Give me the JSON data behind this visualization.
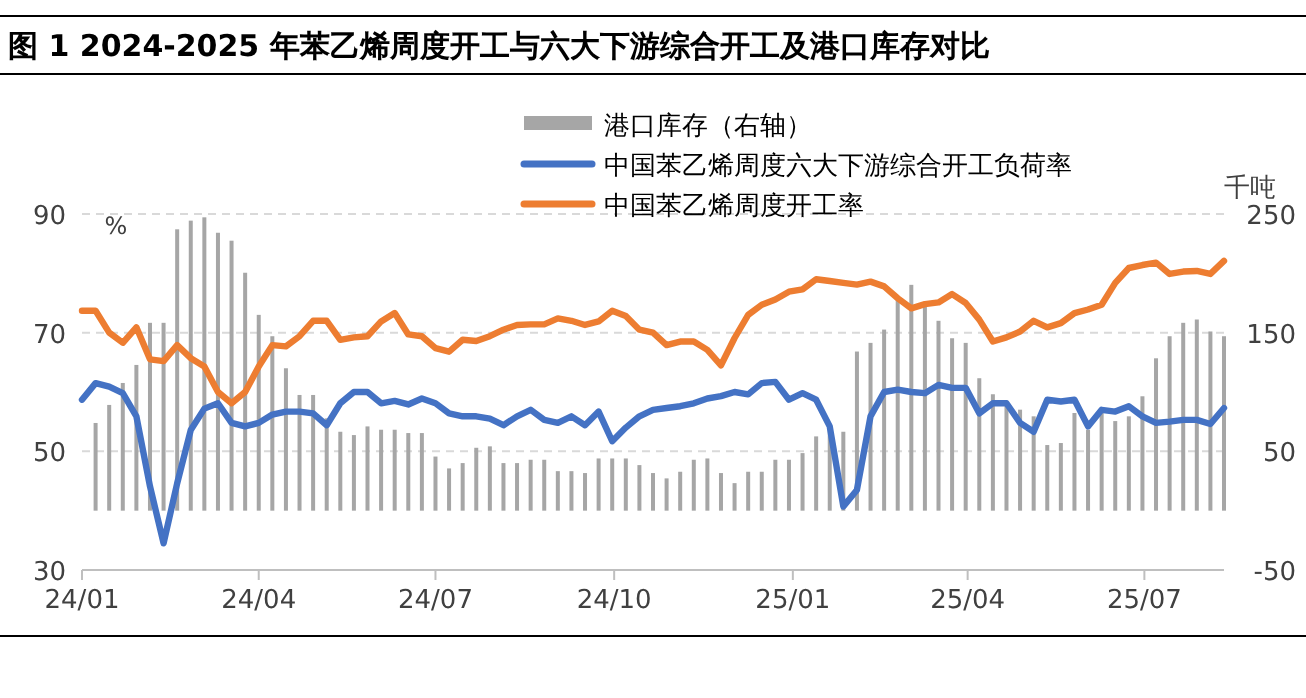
{
  "chart_data": {
    "type": "line",
    "title": "图 1 2024-2025 年苯乙烯周度开工与六大下游综合开工及港口库存对比",
    "ylabel": "%",
    "y2label": "千吨",
    "x": [
      "2024-01-01",
      "2024-01-08",
      "2024-01-15",
      "2024-01-22",
      "2024-01-29",
      "2024-02-05",
      "2024-02-12",
      "2024-02-19",
      "2024-02-26",
      "2024-03-04",
      "2024-03-11",
      "2024-03-18",
      "2024-03-25",
      "2024-04-01",
      "2024-04-08",
      "2024-04-15",
      "2024-04-22",
      "2024-04-29",
      "2024-05-06",
      "2024-05-13",
      "2024-05-20",
      "2024-05-27",
      "2024-06-03",
      "2024-06-10",
      "2024-06-17",
      "2024-06-24",
      "2024-07-01",
      "2024-07-08",
      "2024-07-15",
      "2024-07-22",
      "2024-07-29",
      "2024-08-05",
      "2024-08-12",
      "2024-08-19",
      "2024-08-26",
      "2024-09-02",
      "2024-09-09",
      "2024-09-16",
      "2024-09-23",
      "2024-09-30",
      "2024-10-07",
      "2024-10-14",
      "2024-10-21",
      "2024-10-28",
      "2024-11-04",
      "2024-11-11",
      "2024-11-18",
      "2024-11-25",
      "2024-12-02",
      "2024-12-09",
      "2024-12-16",
      "2024-12-23",
      "2024-12-30",
      "2025-01-06",
      "2025-01-13",
      "2025-01-20",
      "2025-01-27",
      "2025-02-03",
      "2025-02-10",
      "2025-02-17",
      "2025-02-24",
      "2025-03-03",
      "2025-03-10",
      "2025-03-17",
      "2025-03-24",
      "2025-03-31",
      "2025-04-07",
      "2025-04-14",
      "2025-04-21",
      "2025-04-28",
      "2025-05-05",
      "2025-05-12",
      "2025-05-19",
      "2025-05-26",
      "2025-06-02",
      "2025-06-09",
      "2025-06-16",
      "2025-06-23",
      "2025-06-30",
      "2025-07-07",
      "2025-07-14",
      "2025-07-21",
      "2025-07-28",
      "2025-08-04",
      "2025-08-11"
    ],
    "series": [
      {
        "name": "港口库存（右轴）",
        "type": "bar",
        "axis": "y2",
        "color": "#a6a6a6",
        "values": [
          null,
          73.9,
          89.1,
          107.6,
          122.8,
          158.3,
          158.3,
          237.1,
          244.4,
          247.2,
          234.2,
          227.5,
          200.5,
          165.0,
          147.0,
          120.0,
          97.5,
          97.5,
          77.8,
          66.5,
          63.7,
          71.0,
          68.2,
          68.2,
          65.4,
          65.4,
          45.6,
          35.6,
          40.1,
          53.0,
          54.2,
          40.1,
          40.1,
          42.9,
          42.9,
          33.3,
          33.3,
          31.7,
          44.0,
          44.0,
          44.0,
          38.4,
          31.7,
          27.2,
          32.8,
          42.9,
          44.0,
          31.7,
          23.2,
          32.8,
          32.8,
          42.9,
          42.9,
          48.5,
          62.6,
          68.2,
          66.5,
          134.1,
          141.4,
          152.6,
          179.1,
          190.3,
          172.3,
          160.0,
          145.3,
          141.4,
          111.6,
          98.1,
          89.1,
          85.1,
          79.5,
          55.3,
          57.0,
          82.3,
          68.2,
          82.3,
          75.5,
          79.5,
          96.4,
          128.4,
          147.0,
          158.3,
          161.1,
          151.0,
          147.0
        ]
      },
      {
        "name": "中国苯乙烯周度六大下游综合开工负荷率",
        "color": "#4472c4",
        "values": [
          58.7,
          61.5,
          60.9,
          59.8,
          55.9,
          44.1,
          34.5,
          44.6,
          53.6,
          57.2,
          58.1,
          54.8,
          54.2,
          54.8,
          56.2,
          56.7,
          56.7,
          56.4,
          54.4,
          58.1,
          60.0,
          60.0,
          58.1,
          58.5,
          57.9,
          58.9,
          58.1,
          56.4,
          55.9,
          55.9,
          55.5,
          54.4,
          55.9,
          57.0,
          55.3,
          54.8,
          55.9,
          54.4,
          56.7,
          51.7,
          54.0,
          55.9,
          57.0,
          57.3,
          57.6,
          58.1,
          58.9,
          59.3,
          60.0,
          59.6,
          61.5,
          61.7,
          58.7,
          59.8,
          58.7,
          54.2,
          40.7,
          43.5,
          55.9,
          60.0,
          60.4,
          60.0,
          59.8,
          61.2,
          60.7,
          60.7,
          56.4,
          58.1,
          58.1,
          54.8,
          53.3,
          58.7,
          58.4,
          58.7,
          54.2,
          57.0,
          56.7,
          57.6,
          55.9,
          54.8,
          55.0,
          55.3,
          55.3,
          54.6,
          57.3
        ]
      },
      {
        "name": "中国苯乙烯周度开工率",
        "color": "#ed7d31",
        "values": [
          73.7,
          73.7,
          70.0,
          68.3,
          70.9,
          65.5,
          65.2,
          67.9,
          65.7,
          64.3,
          60.0,
          58.1,
          60.0,
          64.3,
          67.9,
          67.7,
          69.4,
          72.0,
          72.0,
          68.8,
          69.2,
          69.4,
          71.9,
          73.3,
          69.7,
          69.4,
          67.4,
          66.8,
          68.8,
          68.6,
          69.4,
          70.5,
          71.3,
          71.4,
          71.4,
          72.4,
          72.0,
          71.3,
          71.9,
          73.7,
          72.8,
          70.5,
          70.0,
          67.9,
          68.5,
          68.5,
          67.1,
          64.5,
          69.1,
          73.0,
          74.7,
          75.6,
          76.9,
          77.3,
          79.0,
          78.7,
          78.4,
          78.1,
          78.6,
          77.8,
          75.8,
          74.1,
          74.8,
          75.1,
          76.5,
          75.0,
          72.2,
          68.5,
          69.2,
          70.2,
          72.0,
          70.9,
          71.6,
          73.3,
          73.9,
          74.7,
          78.4,
          80.9,
          81.4,
          81.8,
          79.9,
          80.3,
          80.4,
          79.9,
          82.1
        ]
      }
    ],
    "xlim": [
      "2024-01-01",
      "2025-08-11"
    ],
    "xticks": [
      {
        "value": "2024-01-01",
        "label": "24/01"
      },
      {
        "value": "2024-04-01",
        "label": "24/04"
      },
      {
        "value": "2024-07-01",
        "label": "24/07"
      },
      {
        "value": "2024-10-01",
        "label": "24/10"
      },
      {
        "value": "2025-01-01",
        "label": "25/01"
      },
      {
        "value": "2025-04-01",
        "label": "25/04"
      },
      {
        "value": "2025-07-01",
        "label": "25/07"
      }
    ],
    "ylim": [
      30,
      90
    ],
    "yticks": [
      30,
      50,
      70,
      90
    ],
    "y2lim": [
      -50,
      250
    ],
    "y2ticks": [
      -50,
      50,
      150,
      250
    ],
    "grid": "y",
    "legend": "top right",
    "marker": "none",
    "line_style": "solid"
  }
}
